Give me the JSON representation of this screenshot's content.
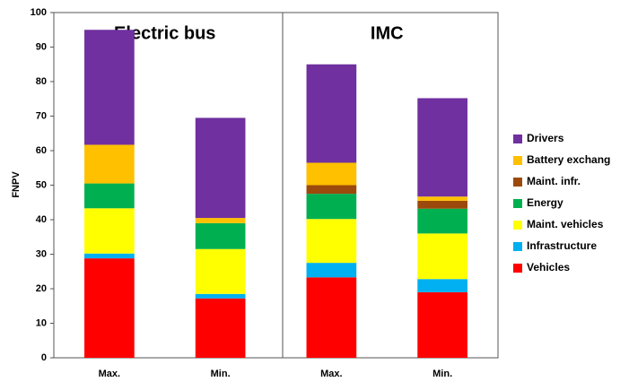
{
  "chart_data": {
    "type": "stacked_bar",
    "y_label": "FNPV",
    "categories": [
      "Max.",
      "Min.",
      "Max.",
      "Min."
    ],
    "group_labels": [
      "Electric bus",
      "IMC"
    ],
    "series": [
      {
        "name": "Vehicles",
        "color": "#ff0000",
        "values": [
          28.8,
          17.2,
          23.3,
          19.0
        ]
      },
      {
        "name": "Infrastructure",
        "color": "#00b0f0",
        "values": [
          1.4,
          1.3,
          4.2,
          3.8
        ]
      },
      {
        "name": "Maint. vehicles",
        "color": "#ffff00",
        "values": [
          13.1,
          13.0,
          12.7,
          13.2
        ]
      },
      {
        "name": "Energy",
        "color": "#00b050",
        "values": [
          7.2,
          7.5,
          7.3,
          7.2
        ]
      },
      {
        "name": "Maint. infr.",
        "color": "#9c4a0c",
        "values": [
          0,
          0,
          2.5,
          2.3
        ]
      },
      {
        "name": "Battery exchang",
        "color": "#ffc000",
        "values": [
          11.2,
          1.5,
          6.5,
          1.2
        ]
      },
      {
        "name": "Drivers",
        "color": "#7030a0",
        "values": [
          33.3,
          29.0,
          28.5,
          28.5
        ]
      }
    ],
    "ylim": [
      0,
      100
    ],
    "yticks": [
      0,
      10,
      20,
      30,
      40,
      50,
      60,
      70,
      80,
      90,
      100
    ],
    "legend": "right"
  }
}
